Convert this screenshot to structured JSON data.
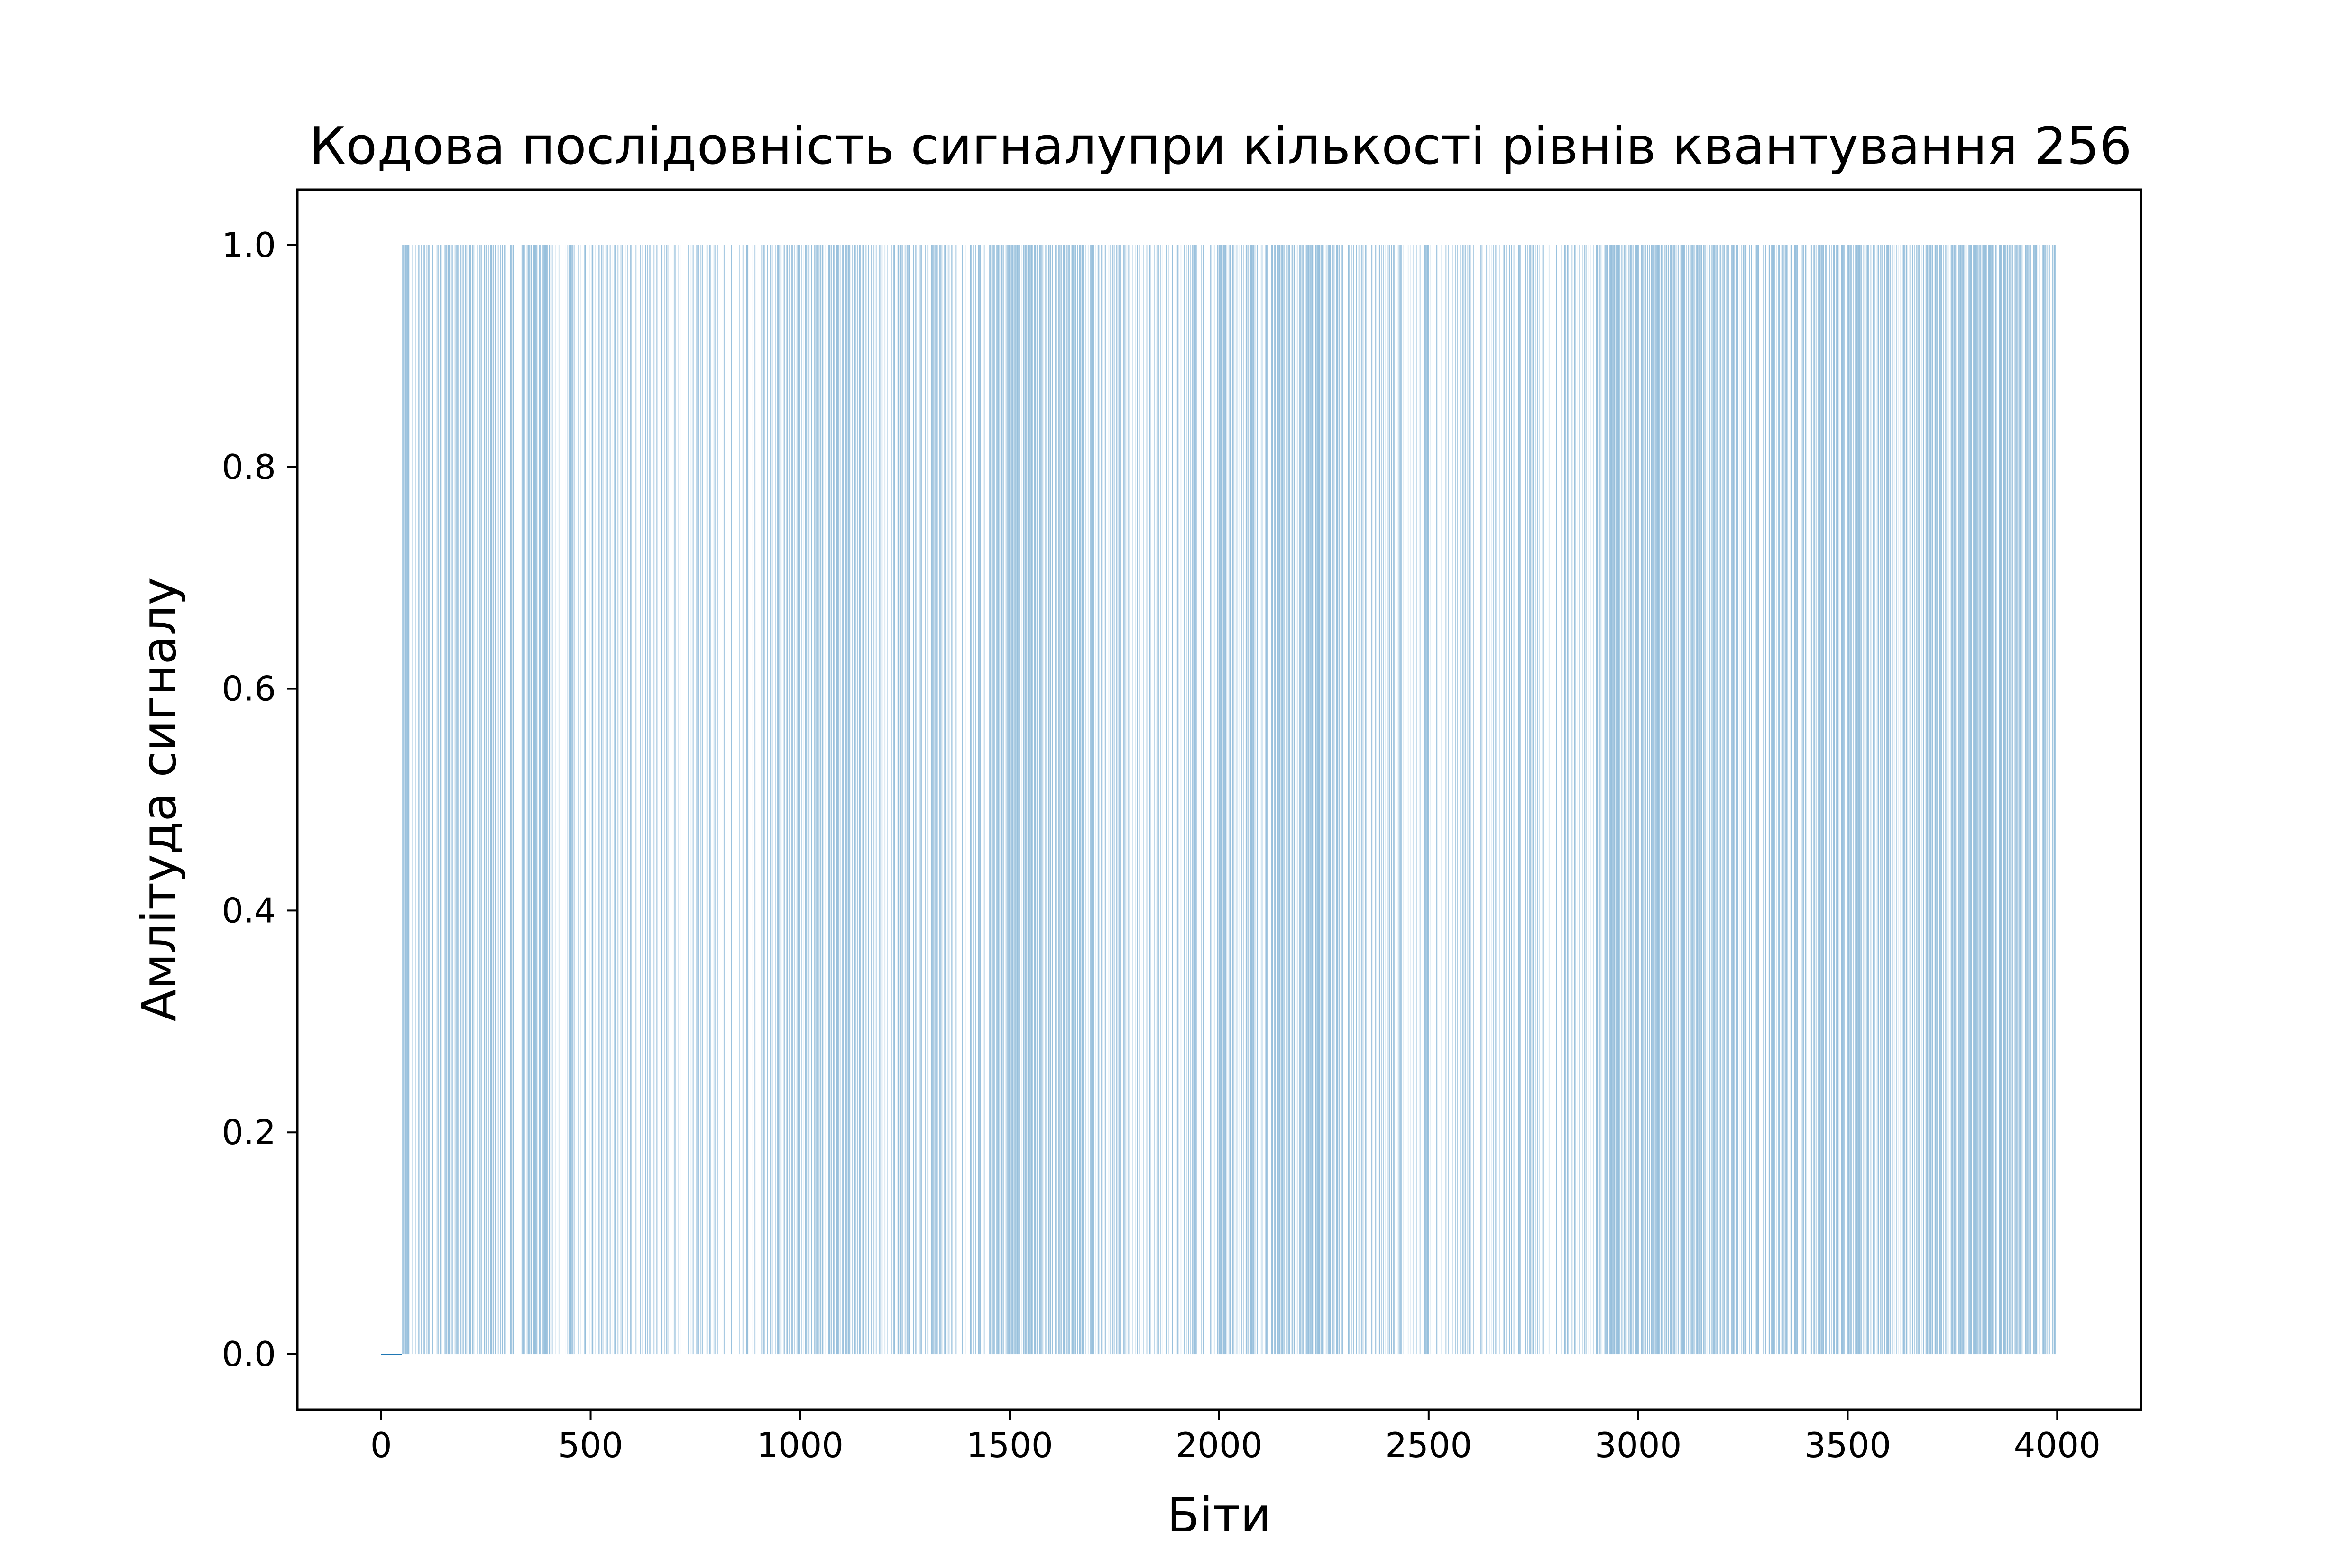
{
  "chart_data": {
    "type": "bar",
    "title": "Кодова послідовність сигналупри кількості рівнів квантування 256",
    "xlabel": "Біти",
    "ylabel": "Амлітуда сигналу",
    "xlim": [
      -200,
      4200
    ],
    "ylim": [
      -0.05,
      1.05
    ],
    "xticks": [
      0,
      500,
      1000,
      1500,
      2000,
      2500,
      3000,
      3500,
      4000
    ],
    "xtick_labels": [
      "0",
      "500",
      "1000",
      "1500",
      "2000",
      "2500",
      "3000",
      "3500",
      "4000"
    ],
    "yticks": [
      0.0,
      0.2,
      0.4,
      0.6,
      0.8,
      1.0
    ],
    "ytick_labels": [
      "0.0",
      "0.2",
      "0.4",
      "0.6",
      "0.8",
      "1.0"
    ],
    "grid": false,
    "series": [
      {
        "color": "#1f77b4",
        "n_bits": 4000,
        "value_range": [
          0,
          1
        ],
        "note_values": "binary code sequence of 4000 bits (0 or 1); first ~50 bits are 0",
        "density_segments": [
          {
            "x": [
              0,
              50
            ],
            "ones_fraction": 0.0
          },
          {
            "x": [
              50,
              400
            ],
            "ones_fraction": 0.45
          },
          {
            "x": [
              400,
              700
            ],
            "ones_fraction": 0.35
          },
          {
            "x": [
              700,
              900
            ],
            "ones_fraction": 0.18
          },
          {
            "x": [
              900,
              1150
            ],
            "ones_fraction": 0.5
          },
          {
            "x": [
              1150,
              1450
            ],
            "ones_fraction": 0.35
          },
          {
            "x": [
              1450,
              1700
            ],
            "ones_fraction": 0.6
          },
          {
            "x": [
              1700,
              2000
            ],
            "ones_fraction": 0.3
          },
          {
            "x": [
              2000,
              2300
            ],
            "ones_fraction": 0.55
          },
          {
            "x": [
              2300,
              2650
            ],
            "ones_fraction": 0.35
          },
          {
            "x": [
              2650,
              2900
            ],
            "ones_fraction": 0.3
          },
          {
            "x": [
              2900,
              3150
            ],
            "ones_fraction": 0.6
          },
          {
            "x": [
              3150,
              3450
            ],
            "ones_fraction": 0.45
          },
          {
            "x": [
              3450,
              3750
            ],
            "ones_fraction": 0.55
          },
          {
            "x": [
              3750,
              4000
            ],
            "ones_fraction": 0.62
          }
        ]
      }
    ]
  }
}
